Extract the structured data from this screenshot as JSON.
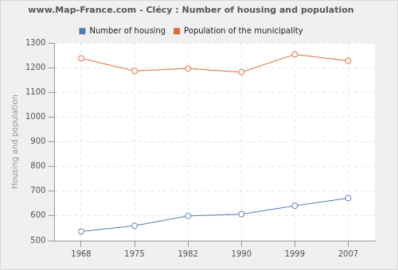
{
  "chart_data": {
    "type": "line",
    "title": "www.Map-France.com - Clécy : Number of housing and population",
    "y_label": "Housing and population",
    "categories": [
      "1968",
      "1975",
      "1982",
      "1990",
      "1999",
      "2007"
    ],
    "series": [
      {
        "name": "Number of housing",
        "color": "#4f7bb0",
        "marker": "circle",
        "values": [
          537,
          560,
          600,
          607,
          641,
          672
        ]
      },
      {
        "name": "Population of the municipality",
        "color": "#e0693a",
        "marker": "circle",
        "values": [
          1238,
          1187,
          1197,
          1182,
          1254,
          1228
        ]
      }
    ],
    "ylim": [
      500,
      1300
    ],
    "yticks": [
      500,
      600,
      700,
      800,
      900,
      1000,
      1100,
      1200,
      1300
    ],
    "grid": true,
    "legend": "top"
  }
}
